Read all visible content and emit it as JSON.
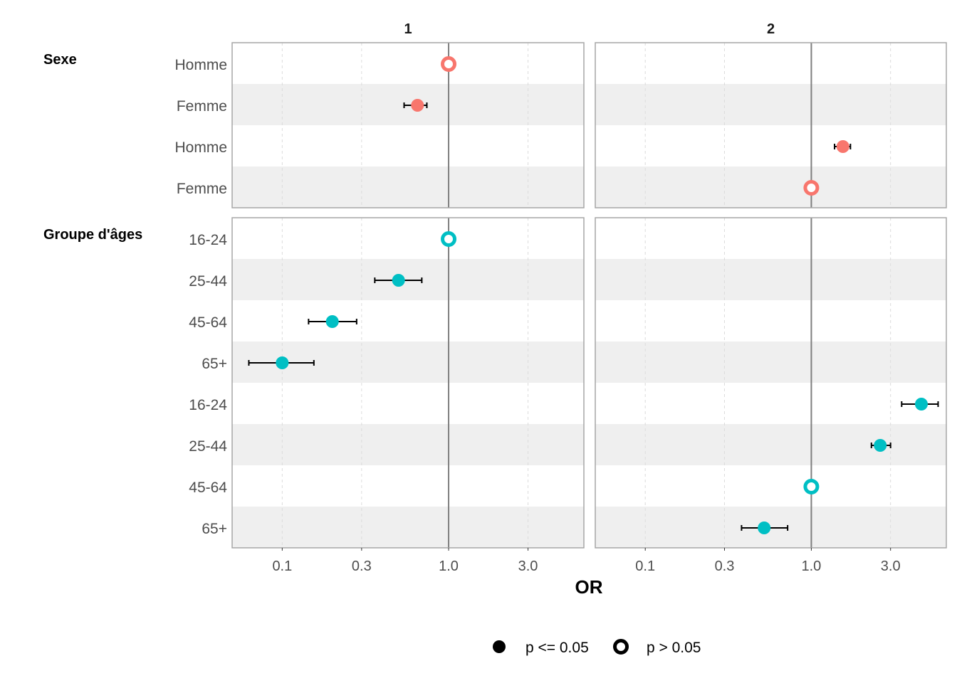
{
  "chart_data": {
    "type": "scatter",
    "subtype": "forest-plot",
    "x_scale": "log",
    "xlabel": "OR",
    "xlim": [
      0.05,
      6.5
    ],
    "x_ticks": [
      0.1,
      0.3,
      1.0,
      3.0
    ],
    "x_tick_labels": [
      "0.1",
      "0.3",
      "1.0",
      "3.0"
    ],
    "reference_line": 1.0,
    "grid": "vertical dashed",
    "facets": [
      "1",
      "2"
    ],
    "groups": [
      {
        "label": "Sexe",
        "color": "#F8766D",
        "rows": [
          {
            "label": "Homme",
            "values": [
              {
                "or": 1.0,
                "lo": null,
                "hi": null,
                "sig": false
              },
              null
            ]
          },
          {
            "label": "Femme",
            "values": [
              {
                "or": 0.65,
                "lo": 0.54,
                "hi": 0.74,
                "sig": true
              },
              null
            ]
          },
          {
            "label": "Homme",
            "values": [
              null,
              {
                "or": 1.55,
                "lo": 1.38,
                "hi": 1.72,
                "sig": true
              }
            ]
          },
          {
            "label": "Femme",
            "values": [
              null,
              {
                "or": 1.0,
                "lo": null,
                "hi": null,
                "sig": false
              }
            ]
          }
        ]
      },
      {
        "label": "Groupe d'âges",
        "color": "#00BFC4",
        "rows": [
          {
            "label": "16-24",
            "values": [
              {
                "or": 1.0,
                "lo": null,
                "hi": null,
                "sig": false
              },
              null
            ]
          },
          {
            "label": "25-44",
            "values": [
              {
                "or": 0.5,
                "lo": 0.36,
                "hi": 0.69,
                "sig": true
              },
              null
            ]
          },
          {
            "label": "45-64",
            "values": [
              {
                "or": 0.2,
                "lo": 0.144,
                "hi": 0.28,
                "sig": true
              },
              null
            ]
          },
          {
            "label": "65+",
            "values": [
              {
                "or": 0.1,
                "lo": 0.063,
                "hi": 0.155,
                "sig": true
              },
              null
            ]
          },
          {
            "label": "16-24",
            "values": [
              null,
              {
                "or": 4.6,
                "lo": 3.5,
                "hi": 5.8,
                "sig": true
              }
            ]
          },
          {
            "label": "25-44",
            "values": [
              null,
              {
                "or": 2.6,
                "lo": 2.3,
                "hi": 3.0,
                "sig": true
              }
            ]
          },
          {
            "label": "45-64",
            "values": [
              null,
              {
                "or": 1.0,
                "lo": null,
                "hi": null,
                "sig": false
              }
            ]
          },
          {
            "label": "65+",
            "values": [
              null,
              {
                "or": 0.52,
                "lo": 0.38,
                "hi": 0.72,
                "sig": true
              }
            ]
          }
        ]
      }
    ],
    "legend": {
      "position": "bottom",
      "items": [
        {
          "label": "p <= 0.05",
          "shape": "filled-circle"
        },
        {
          "label": "p > 0.05",
          "shape": "open-circle"
        }
      ]
    }
  }
}
